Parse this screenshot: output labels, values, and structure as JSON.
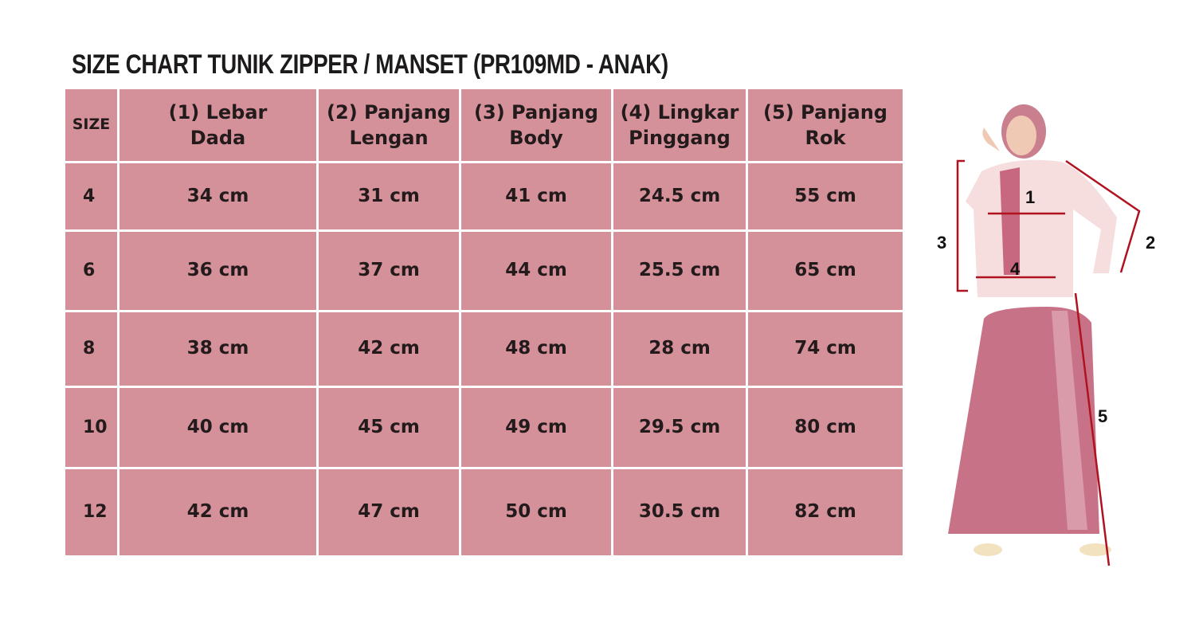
{
  "title": "SIZE CHART TUNIK ZIPPER / MANSET (PR109MD - ANAK)",
  "chart_data": {
    "type": "table",
    "title": "SIZE CHART TUNIK ZIPPER / MANSET (PR109MD - ANAK)",
    "columns": [
      "SIZE",
      "(1) Lebar\nDada",
      "(2) Panjang\nLengan",
      "(3) Panjang\nBody",
      "(4) Lingkar\nPinggang",
      "(5) Panjang\nRok"
    ],
    "rows": [
      [
        "4",
        "34 cm",
        "31 cm",
        "41 cm",
        "24.5 cm",
        "55 cm"
      ],
      [
        "6",
        "36 cm",
        "37 cm",
        "44 cm",
        "25.5 cm",
        "65 cm"
      ],
      [
        "8",
        "38 cm",
        "42 cm",
        "48 cm",
        "28 cm",
        "74 cm"
      ],
      [
        "10",
        "40 cm",
        "45 cm",
        "49 cm",
        "29.5 cm",
        "80 cm"
      ],
      [
        "12",
        "42 cm",
        "47 cm",
        "50 cm",
        "30.5 cm",
        "82 cm"
      ]
    ]
  },
  "figure": {
    "labels": [
      "1",
      "2",
      "3",
      "4",
      "5"
    ]
  },
  "colors": {
    "cell": "#d4919a",
    "measure_line": "#b0121f",
    "text": "#231a1c"
  }
}
